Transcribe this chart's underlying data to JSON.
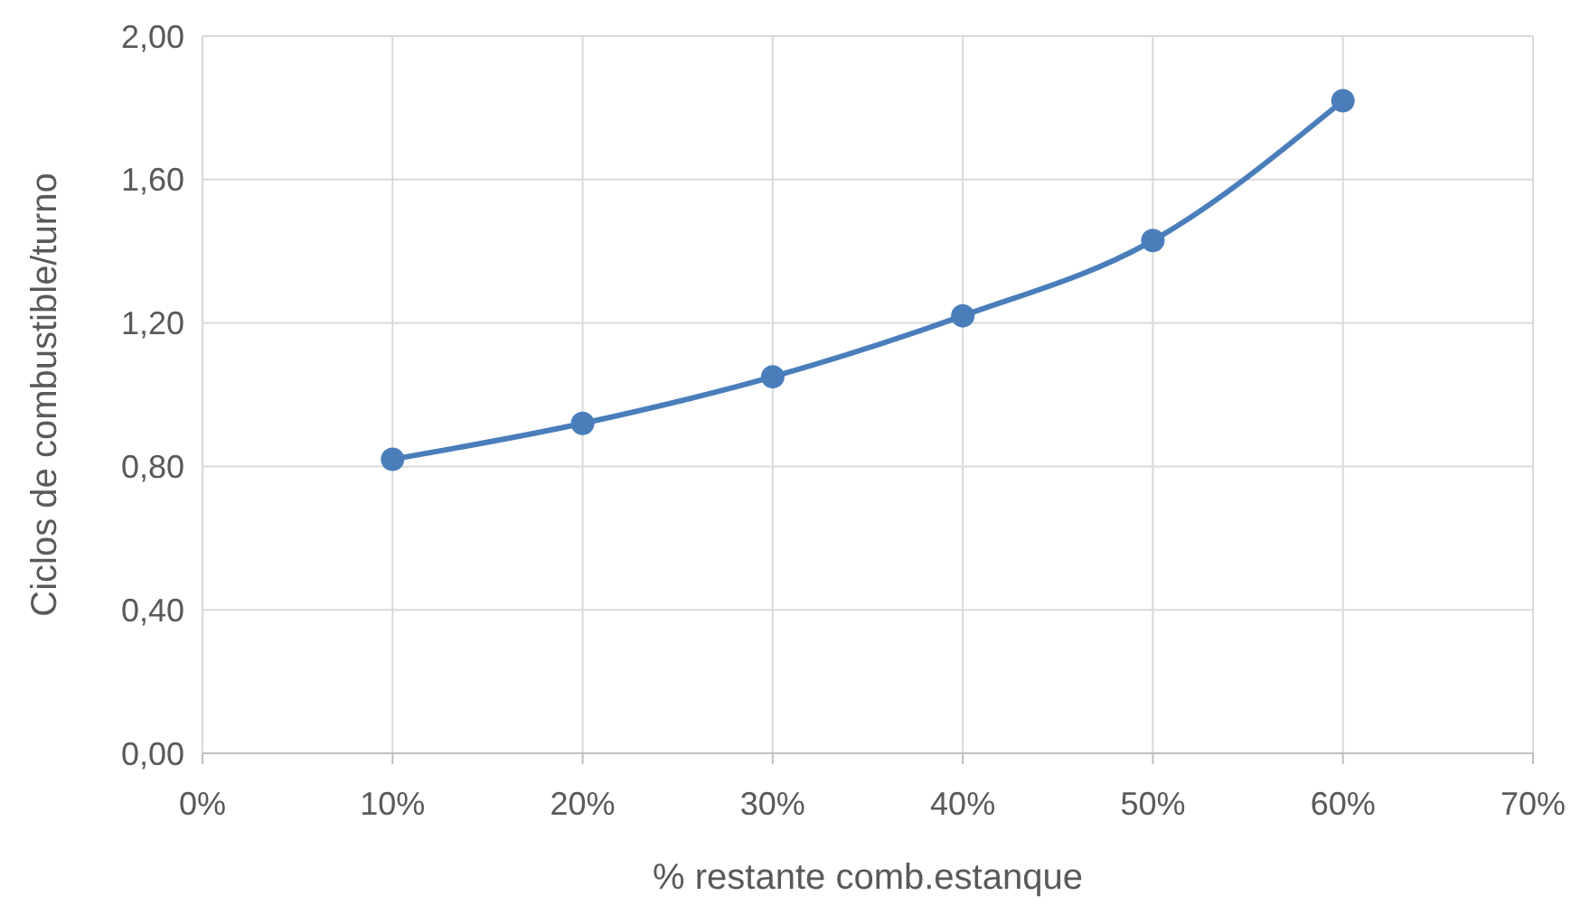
{
  "chart_data": {
    "type": "line",
    "xlabel": "% restante comb.estanque",
    "ylabel": "Ciclos de combustible/turno",
    "x": [
      10,
      20,
      30,
      40,
      50,
      60
    ],
    "series": [
      {
        "color": "#4a7ebb",
        "values": [
          0.82,
          0.92,
          1.05,
          1.22,
          1.43,
          1.82
        ]
      }
    ],
    "xlim": [
      0,
      70
    ],
    "xticks": [
      {
        "value": 0,
        "label": "0%"
      },
      {
        "value": 10,
        "label": "10%"
      },
      {
        "value": 20,
        "label": "20%"
      },
      {
        "value": 30,
        "label": "30%"
      },
      {
        "value": 40,
        "label": "40%"
      },
      {
        "value": 50,
        "label": "50%"
      },
      {
        "value": 60,
        "label": "60%"
      },
      {
        "value": 70,
        "label": "70%"
      }
    ],
    "ylim": [
      0,
      2
    ],
    "yticks": [
      {
        "value": 0,
        "label": "0,00"
      },
      {
        "value": 0.4,
        "label": "0,40"
      },
      {
        "value": 0.8,
        "label": "0,80"
      },
      {
        "value": 1.2,
        "label": "1,20"
      },
      {
        "value": 1.6,
        "label": "1,60"
      },
      {
        "value": 2,
        "label": "2,00"
      }
    ],
    "grid": true,
    "marker": "circle",
    "line_style": "solid"
  }
}
